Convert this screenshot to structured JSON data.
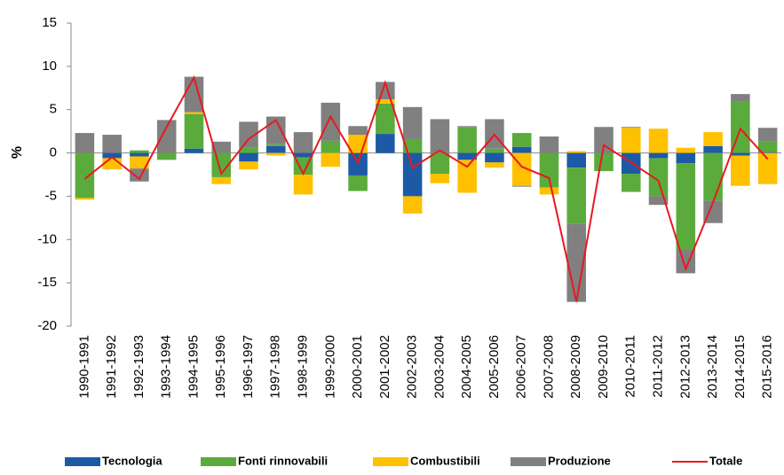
{
  "chart_data": {
    "type": "bar",
    "stacked": true,
    "y_label": "%",
    "categories": [
      "1990-1991",
      "1991-1992",
      "1992-1993",
      "1993-1994",
      "1994-1995",
      "1995-1996",
      "1996-1997",
      "1997-1998",
      "1998-1999",
      "1999-2000",
      "2000-2001",
      "2001-2002",
      "2002-2003",
      "2003-2004",
      "2004-2005",
      "2005-2006",
      "2006-2007",
      "2007-2008",
      "2008-2009",
      "2009-2010",
      "2010-2011",
      "2011-2012",
      "2012-2013",
      "2013-2014",
      "2014-2015",
      "2015-2016"
    ],
    "series": [
      {
        "name": "Tecnologia",
        "color": "#1c5aa6",
        "values": [
          0,
          -0.6,
          -0.4,
          0,
          0.5,
          0,
          -1.0,
          0.8,
          -0.5,
          0,
          -2.6,
          2.2,
          -5.0,
          0,
          -0.8,
          -1.1,
          0.7,
          0,
          -1.7,
          0,
          -2.4,
          -0.6,
          -1.2,
          0.8,
          -0.3,
          0.1
        ]
      },
      {
        "name": "Fonti rinnovabili",
        "color": "#5aab3c",
        "values": [
          -5.2,
          0,
          0.3,
          -0.8,
          4.0,
          -2.8,
          0.6,
          0.2,
          -2.0,
          1.4,
          -1.8,
          3.5,
          1.6,
          -2.4,
          3.0,
          0.5,
          1.6,
          -4.0,
          -6.5,
          -2.1,
          -2.1,
          -4.4,
          -10.0,
          -5.5,
          5.9,
          1.2
        ]
      },
      {
        "name": "Combustibili",
        "color": "#ffc000",
        "values": [
          -0.2,
          -1.3,
          -1.4,
          0,
          0.2,
          -0.8,
          -0.9,
          -0.3,
          -2.3,
          -1.6,
          2.1,
          0.5,
          -2.0,
          -1.1,
          -3.8,
          -0.6,
          -3.8,
          -0.8,
          0.2,
          0,
          2.9,
          2.8,
          0.6,
          1.6,
          -3.5,
          -3.6
        ]
      },
      {
        "name": "Produzione",
        "color": "#808080",
        "values": [
          2.3,
          2.1,
          -1.5,
          3.8,
          4.1,
          1.3,
          3.0,
          3.2,
          2.4,
          4.4,
          1.0,
          2.0,
          3.7,
          3.9,
          0.1,
          3.4,
          -0.1,
          1.9,
          -9.0,
          3.0,
          0.1,
          -1.0,
          -2.7,
          -2.6,
          0.9,
          1.6
        ]
      },
      {
        "name": "Totale",
        "color": "#e8191f",
        "type": "line",
        "values": [
          -3.0,
          -0.5,
          -3.0,
          3.0,
          8.7,
          -2.4,
          1.6,
          3.8,
          -2.4,
          4.2,
          -1.1,
          8.1,
          -1.7,
          0.3,
          -1.6,
          2.1,
          -1.6,
          -2.9,
          -17.2,
          0.9,
          -1.1,
          -3.2,
          -13.4,
          -5.7,
          2.8,
          -0.7
        ]
      }
    ],
    "ylim": [
      -20,
      15
    ],
    "yticks": [
      -20,
      -15,
      -10,
      -5,
      0,
      5,
      10,
      15
    ],
    "grid": false,
    "legend": "bottom"
  }
}
